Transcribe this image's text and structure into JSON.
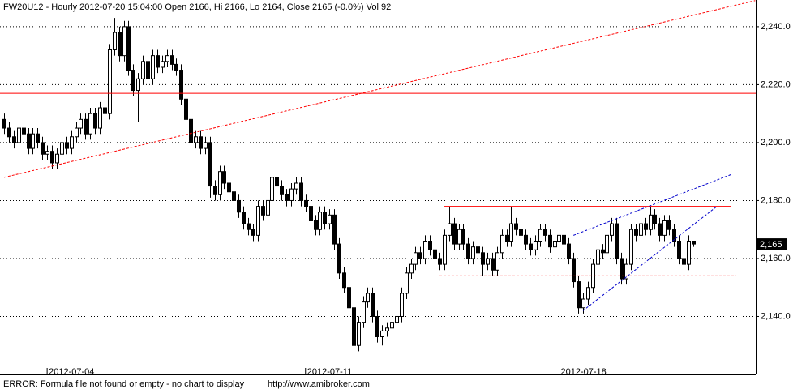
{
  "chart_data": {
    "type": "candlestick",
    "title": "FW20U12 - Hourly 2012-07-20 15:04:00 Open 2166, Hi 2166, Lo 2164, Close 2165 (-0.0%) Vol 92",
    "footer": "ERROR: Formula file not found or empty - no chart to display",
    "credit": "http://www.amibroker.com",
    "xlim": [
      -0.85,
      157.1
    ],
    "ylim": [
      2120,
      2249.2
    ],
    "yticks": [
      {
        "value": 2140,
        "label": "2,140.0"
      },
      {
        "value": 2160,
        "label": "2,160.0"
      },
      {
        "value": 2180,
        "label": "2,180.0"
      },
      {
        "value": 2200,
        "label": "2,200.0"
      },
      {
        "value": 2220,
        "label": "2,220.0"
      },
      {
        "value": 2240,
        "label": "2,240.0"
      }
    ],
    "xticks": [
      {
        "value": 9,
        "label": "2012-07-04"
      },
      {
        "value": 63,
        "label": "2012-07-11"
      },
      {
        "value": 116,
        "label": "2012-07-18"
      }
    ],
    "grid": true,
    "up_color": "#ffffff",
    "down_color": "#000000",
    "last_price": {
      "value": 2165,
      "label": "2,165"
    },
    "open": [
      2208,
      2205,
      2202,
      2200,
      2205,
      2203,
      2198,
      2203,
      2200,
      2196,
      2197,
      2193,
      2196,
      2200,
      2198,
      2202,
      2205,
      2208,
      2203,
      2210,
      2205,
      2212,
      2210,
      2232,
      2238,
      2230,
      2240,
      2225,
      2218,
      2222,
      2228,
      2222,
      2230,
      2226,
      2228,
      2230,
      2227,
      2225,
      2215,
      2208,
      2200,
      2202,
      2198,
      2200,
      2185,
      2182,
      2190,
      2186,
      2183,
      2180,
      2176,
      2172,
      2170,
      2168,
      2178,
      2175,
      2180,
      2188,
      2185,
      2182,
      2180,
      2184,
      2186,
      2180,
      2178,
      2173,
      2170,
      2176,
      2172,
      2175,
      2165,
      2155,
      2150,
      2143,
      2130,
      2138,
      2145,
      2148,
      2140,
      2133,
      2135,
      2136,
      2138,
      2140,
      2148,
      2155,
      2158,
      2162,
      2160,
      2166,
      2163,
      2160,
      2158,
      2168,
      2172,
      2165,
      2170,
      2165,
      2160,
      2164,
      2162,
      2158,
      2160,
      2156,
      2162,
      2168,
      2166,
      2172,
      2170,
      2168,
      2165,
      2163,
      2166,
      2170,
      2168,
      2164,
      2166,
      2168,
      2165,
      2160,
      2152,
      2143,
      2146,
      2150,
      2158,
      2163,
      2162,
      2168,
      2172,
      2160,
      2153,
      2158,
      2170,
      2168,
      2172,
      2170,
      2175,
      2172,
      2168,
      2173,
      2170,
      2166,
      2160,
      2158,
      2166
    ],
    "high": [
      2210,
      2207,
      2204,
      2207,
      2207,
      2205,
      2205,
      2205,
      2202,
      2199,
      2199,
      2198,
      2202,
      2202,
      2204,
      2207,
      2210,
      2210,
      2212,
      2212,
      2214,
      2214,
      2234,
      2243,
      2240,
      2242,
      2242,
      2227,
      2224,
      2230,
      2230,
      2232,
      2232,
      2230,
      2232,
      2232,
      2229,
      2227,
      2217,
      2210,
      2204,
      2204,
      2202,
      2202,
      2187,
      2192,
      2192,
      2188,
      2185,
      2182,
      2178,
      2174,
      2172,
      2180,
      2180,
      2182,
      2190,
      2190,
      2187,
      2184,
      2186,
      2188,
      2188,
      2182,
      2180,
      2175,
      2178,
      2178,
      2177,
      2177,
      2167,
      2157,
      2152,
      2145,
      2140,
      2147,
      2150,
      2150,
      2142,
      2137,
      2138,
      2140,
      2142,
      2150,
      2157,
      2160,
      2164,
      2164,
      2168,
      2168,
      2165,
      2162,
      2170,
      2178,
      2174,
      2172,
      2172,
      2167,
      2166,
      2166,
      2164,
      2162,
      2162,
      2164,
      2170,
      2170,
      2178,
      2174,
      2172,
      2170,
      2167,
      2168,
      2172,
      2172,
      2170,
      2168,
      2170,
      2170,
      2167,
      2162,
      2154,
      2148,
      2152,
      2160,
      2165,
      2165,
      2170,
      2174,
      2174,
      2162,
      2160,
      2172,
      2172,
      2174,
      2174,
      2178,
      2177,
      2174,
      2175,
      2175,
      2172,
      2168,
      2162,
      2168,
      2166
    ],
    "low": [
      2203,
      2200,
      2198,
      2198,
      2201,
      2196,
      2196,
      2198,
      2194,
      2194,
      2191,
      2191,
      2194,
      2196,
      2196,
      2200,
      2203,
      2201,
      2201,
      2203,
      2203,
      2208,
      2208,
      2230,
      2228,
      2228,
      2223,
      2216,
      2207,
      2220,
      2220,
      2220,
      2224,
      2224,
      2226,
      2225,
      2223,
      2213,
      2206,
      2196,
      2198,
      2196,
      2196,
      2181,
      2180,
      2180,
      2184,
      2181,
      2178,
      2174,
      2170,
      2168,
      2166,
      2166,
      2173,
      2173,
      2178,
      2183,
      2180,
      2178,
      2178,
      2182,
      2178,
      2176,
      2171,
      2168,
      2168,
      2170,
      2170,
      2163,
      2153,
      2148,
      2141,
      2128,
      2128,
      2136,
      2143,
      2138,
      2131,
      2130,
      2133,
      2134,
      2136,
      2138,
      2146,
      2153,
      2156,
      2158,
      2158,
      2161,
      2158,
      2156,
      2156,
      2166,
      2163,
      2163,
      2163,
      2158,
      2158,
      2160,
      2154,
      2156,
      2154,
      2154,
      2160,
      2164,
      2164,
      2168,
      2166,
      2163,
      2161,
      2161,
      2164,
      2166,
      2162,
      2162,
      2164,
      2163,
      2158,
      2150,
      2141,
      2141,
      2144,
      2148,
      2156,
      2160,
      2160,
      2166,
      2158,
      2151,
      2151,
      2156,
      2166,
      2166,
      2168,
      2168,
      2170,
      2166,
      2166,
      2168,
      2164,
      2158,
      2156,
      2156,
      2164
    ],
    "close": [
      2205,
      2202,
      2200,
      2205,
      2203,
      2198,
      2203,
      2200,
      2196,
      2197,
      2193,
      2196,
      2200,
      2198,
      2202,
      2205,
      2208,
      2203,
      2210,
      2205,
      2212,
      2210,
      2232,
      2238,
      2230,
      2240,
      2225,
      2218,
      2222,
      2228,
      2222,
      2230,
      2226,
      2228,
      2230,
      2227,
      2225,
      2215,
      2208,
      2200,
      2202,
      2198,
      2200,
      2185,
      2182,
      2190,
      2186,
      2183,
      2180,
      2176,
      2172,
      2170,
      2168,
      2178,
      2175,
      2180,
      2188,
      2185,
      2182,
      2180,
      2184,
      2186,
      2180,
      2178,
      2173,
      2170,
      2176,
      2172,
      2175,
      2165,
      2155,
      2150,
      2143,
      2130,
      2138,
      2145,
      2148,
      2140,
      2133,
      2135,
      2136,
      2138,
      2140,
      2148,
      2155,
      2158,
      2162,
      2160,
      2166,
      2163,
      2160,
      2158,
      2168,
      2172,
      2165,
      2170,
      2165,
      2160,
      2164,
      2162,
      2158,
      2160,
      2156,
      2162,
      2168,
      2166,
      2172,
      2170,
      2168,
      2165,
      2163,
      2166,
      2170,
      2168,
      2164,
      2166,
      2168,
      2165,
      2160,
      2152,
      2143,
      2146,
      2150,
      2158,
      2163,
      2162,
      2168,
      2172,
      2160,
      2153,
      2158,
      2170,
      2168,
      2172,
      2170,
      2175,
      2172,
      2168,
      2173,
      2170,
      2166,
      2160,
      2158,
      2166,
      2165
    ],
    "trendlines": [
      {
        "from": [
          0,
          2188
        ],
        "to": [
          157,
          2249
        ],
        "color": "#ff0000",
        "dashed": true
      },
      {
        "from": [
          -0.85,
          2217
        ],
        "to": [
          157.1,
          2217
        ],
        "color": "#ff0000",
        "dashed": false
      },
      {
        "from": [
          -0.85,
          2213
        ],
        "to": [
          157.1,
          2213
        ],
        "color": "#ff0000",
        "dashed": false
      },
      {
        "from": [
          92,
          2178
        ],
        "to": [
          152,
          2178
        ],
        "color": "#ff0000",
        "dashed": false
      },
      {
        "from": [
          91,
          2154
        ],
        "to": [
          153,
          2154
        ],
        "color": "#ff0000",
        "dashed": true
      },
      {
        "from": [
          119,
          2168
        ],
        "to": [
          152,
          2189
        ],
        "color": "#0000cc",
        "dashed": true
      },
      {
        "from": [
          121,
          2142
        ],
        "to": [
          149,
          2178
        ],
        "color": "#0000cc",
        "dashed": true
      }
    ]
  }
}
